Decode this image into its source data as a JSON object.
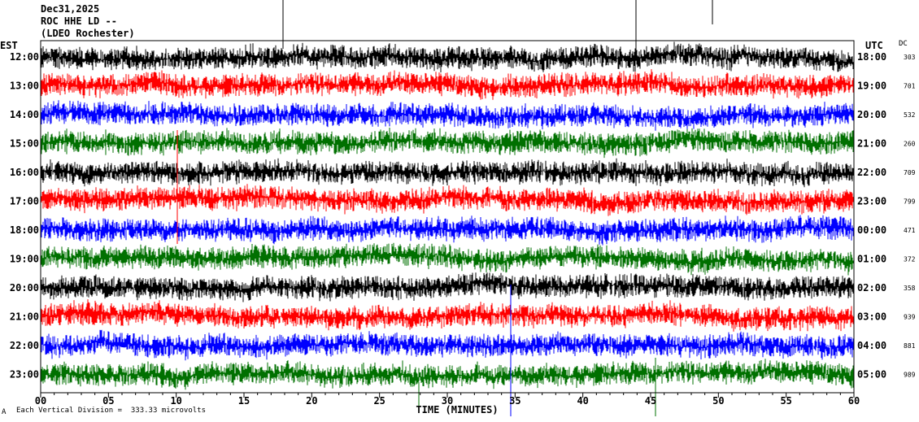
{
  "header": {
    "date": "Dec31,2025",
    "station": "ROC HHE LD --",
    "location": "(LDEO Rochester)"
  },
  "left_zone_label": "EST",
  "right_zone_label": "UTC",
  "dc_label": "DC",
  "footer": {
    "scale_note": "Each Vertical Division =  333.33 microvolts",
    "corner_mark": "A"
  },
  "colors": {
    "cycle": [
      "#000000",
      "#ff0000",
      "#0000ff",
      "#007000"
    ],
    "frame": "#000000",
    "background": "#ffffff"
  },
  "chart_data": {
    "type": "line",
    "xlabel": "TIME (MINUTES)",
    "x_ticks": [
      "00",
      "05",
      "10",
      "15",
      "20",
      "25",
      "30",
      "35",
      "40",
      "45",
      "50",
      "55",
      "60"
    ],
    "xlim": [
      0,
      60
    ],
    "rows": [
      {
        "left": "12:00",
        "right": "18:00",
        "dc": "303"
      },
      {
        "left": "13:00",
        "right": "19:00",
        "dc": "701"
      },
      {
        "left": "14:00",
        "right": "20:00",
        "dc": "532"
      },
      {
        "left": "15:00",
        "right": "21:00",
        "dc": "260"
      },
      {
        "left": "16:00",
        "right": "22:00",
        "dc": "709"
      },
      {
        "left": "17:00",
        "right": "23:00",
        "dc": "799"
      },
      {
        "left": "18:00",
        "right": "00:00",
        "dc": "471"
      },
      {
        "left": "19:00",
        "right": "01:00",
        "dc": "372"
      },
      {
        "left": "20:00",
        "right": "02:00",
        "dc": "358"
      },
      {
        "left": "21:00",
        "right": "03:00",
        "dc": "939"
      },
      {
        "left": "22:00",
        "right": "04:00",
        "dc": "881"
      },
      {
        "left": "23:00",
        "right": "05:00",
        "dc": "989"
      }
    ]
  }
}
